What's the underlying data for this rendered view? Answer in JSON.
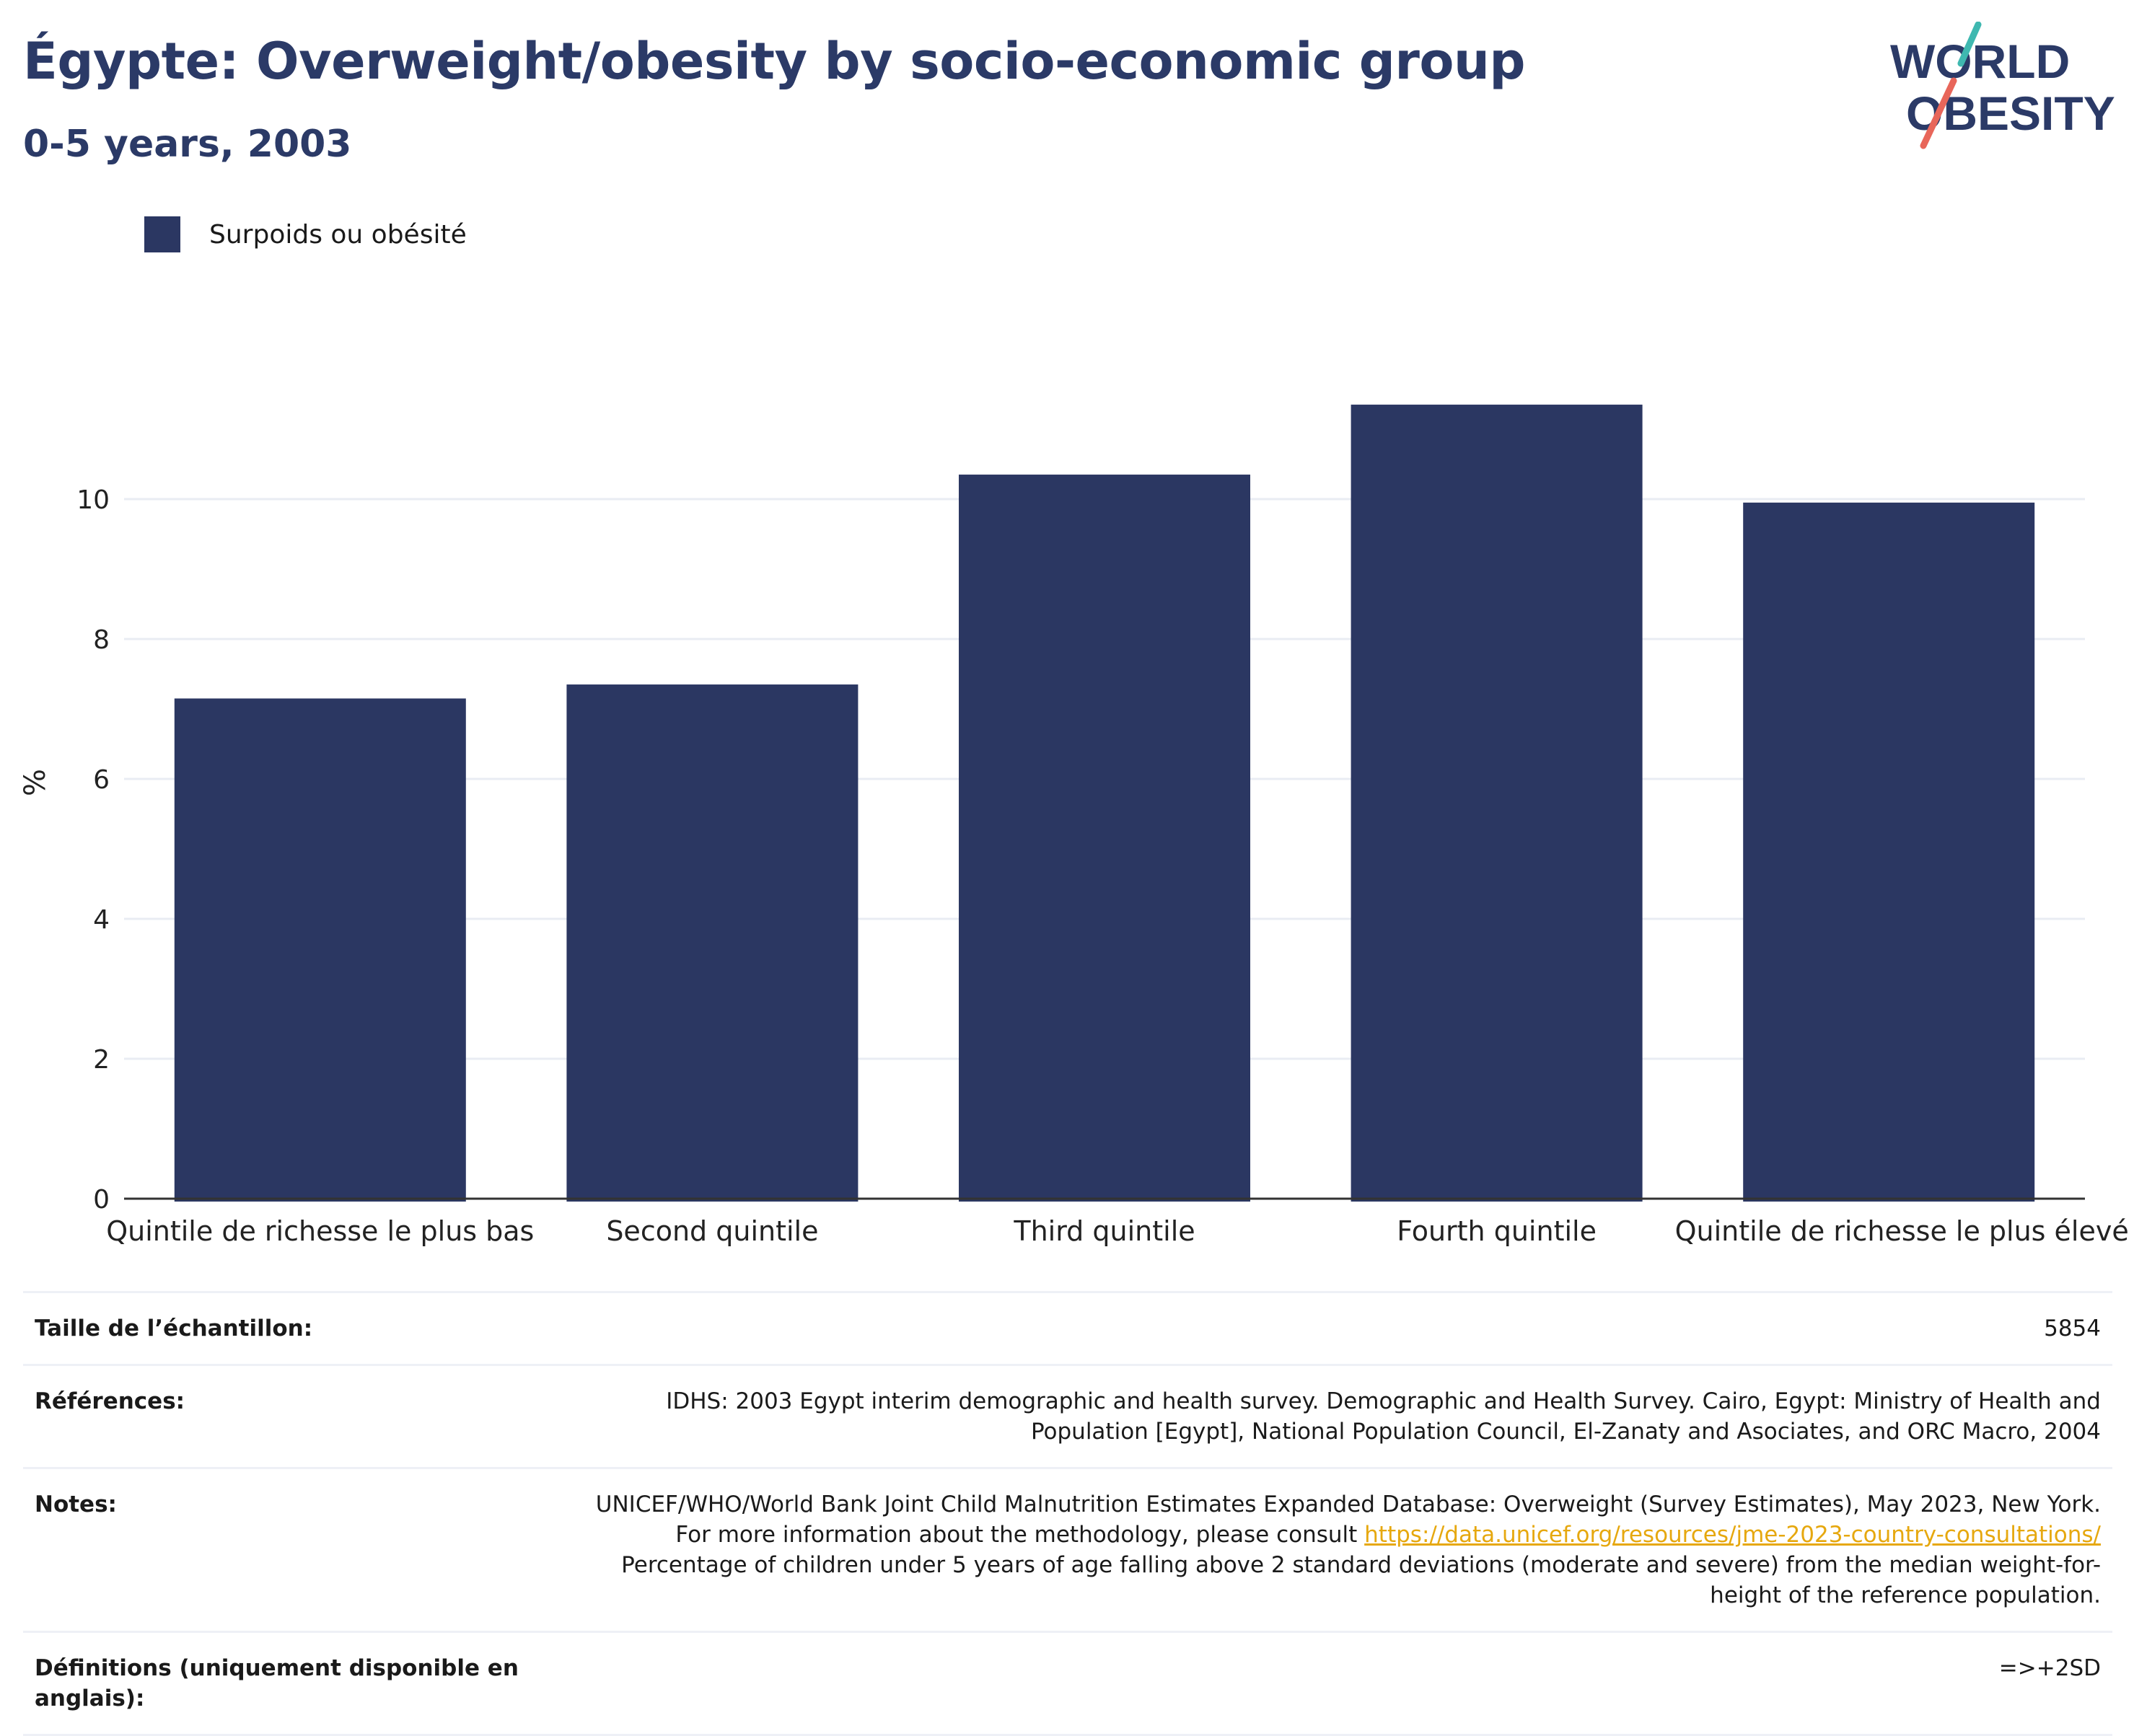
{
  "header": {
    "title": "Égypte: Overweight/obesity by socio-economic group",
    "subtitle": "0-5 years, 2003"
  },
  "logo": {
    "line1": "WORLD",
    "line2": "OBESITY",
    "accent_teal": "#3fb8b0",
    "accent_red": "#e8665a",
    "text_color": "#2b3a67"
  },
  "legend": {
    "label": "Surpoids ou obésité",
    "color": "#2b3762"
  },
  "chart_data": {
    "type": "bar",
    "categories": [
      "Quintile de richesse le plus bas",
      "Second quintile",
      "Third quintile",
      "Fourth quintile",
      "Quintile de richesse le plus élevé"
    ],
    "series": [
      {
        "name": "Surpoids ou obésité",
        "values": [
          7.15,
          7.35,
          10.35,
          11.35,
          9.95
        ],
        "color": "#2b3762"
      }
    ],
    "ylabel": "%",
    "xlabel": "",
    "ylim": [
      0,
      12
    ],
    "yticks": [
      0,
      2,
      4,
      6,
      8,
      10
    ],
    "grid": true
  },
  "meta": {
    "sample_label": "Taille de l’échantillon:",
    "sample_value": "5854",
    "references_label": "Références:",
    "references_value": "IDHS: 2003 Egypt interim demographic and health survey. Demographic and Health Survey. Cairo, Egypt: Ministry of Health and Population [Egypt], National Population Council, El-Zanaty and Asociates, and ORC Macro, 2004",
    "notes_label": "Notes:",
    "notes_text_1": "UNICEF/WHO/World Bank Joint Child Malnutrition Estimates Expanded Database: Overweight (Survey Estimates), May 2023, New York. For more information about the methodology, please consult ",
    "notes_link": "https://data.unicef.org/resources/jme-2023-country-consultations/",
    "notes_text_2": " Percentage of children under 5 years of age falling above 2 standard deviations (moderate and severe) from the median weight-for-height of the reference population.",
    "definitions_label": "Définitions (uniquement disponible en anglais):",
    "definitions_value": "=>+2SD"
  }
}
